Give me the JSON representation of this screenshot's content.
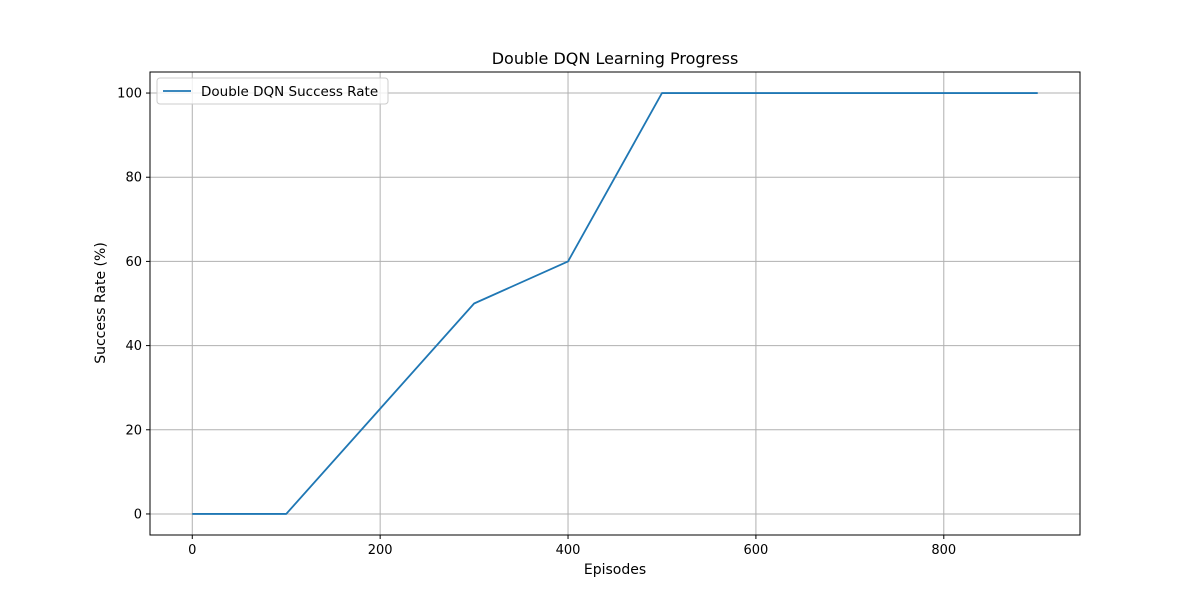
{
  "chart_data": {
    "type": "line",
    "title": "Double DQN Learning Progress",
    "xlabel": "Episodes",
    "ylabel": "Success Rate (%)",
    "xlim": [
      -45,
      945
    ],
    "ylim": [
      -5,
      105
    ],
    "x_ticks": [
      0,
      200,
      400,
      600,
      800
    ],
    "y_ticks": [
      0,
      20,
      40,
      60,
      80,
      100
    ],
    "grid": true,
    "legend": "upper left",
    "series": [
      {
        "name": "Double DQN Success Rate",
        "color": "#1f77b4",
        "x": [
          0,
          100,
          200,
          300,
          400,
          500,
          600,
          700,
          800,
          900
        ],
        "y": [
          0,
          0,
          25,
          50,
          60,
          100,
          100,
          100,
          100,
          100
        ]
      }
    ]
  }
}
